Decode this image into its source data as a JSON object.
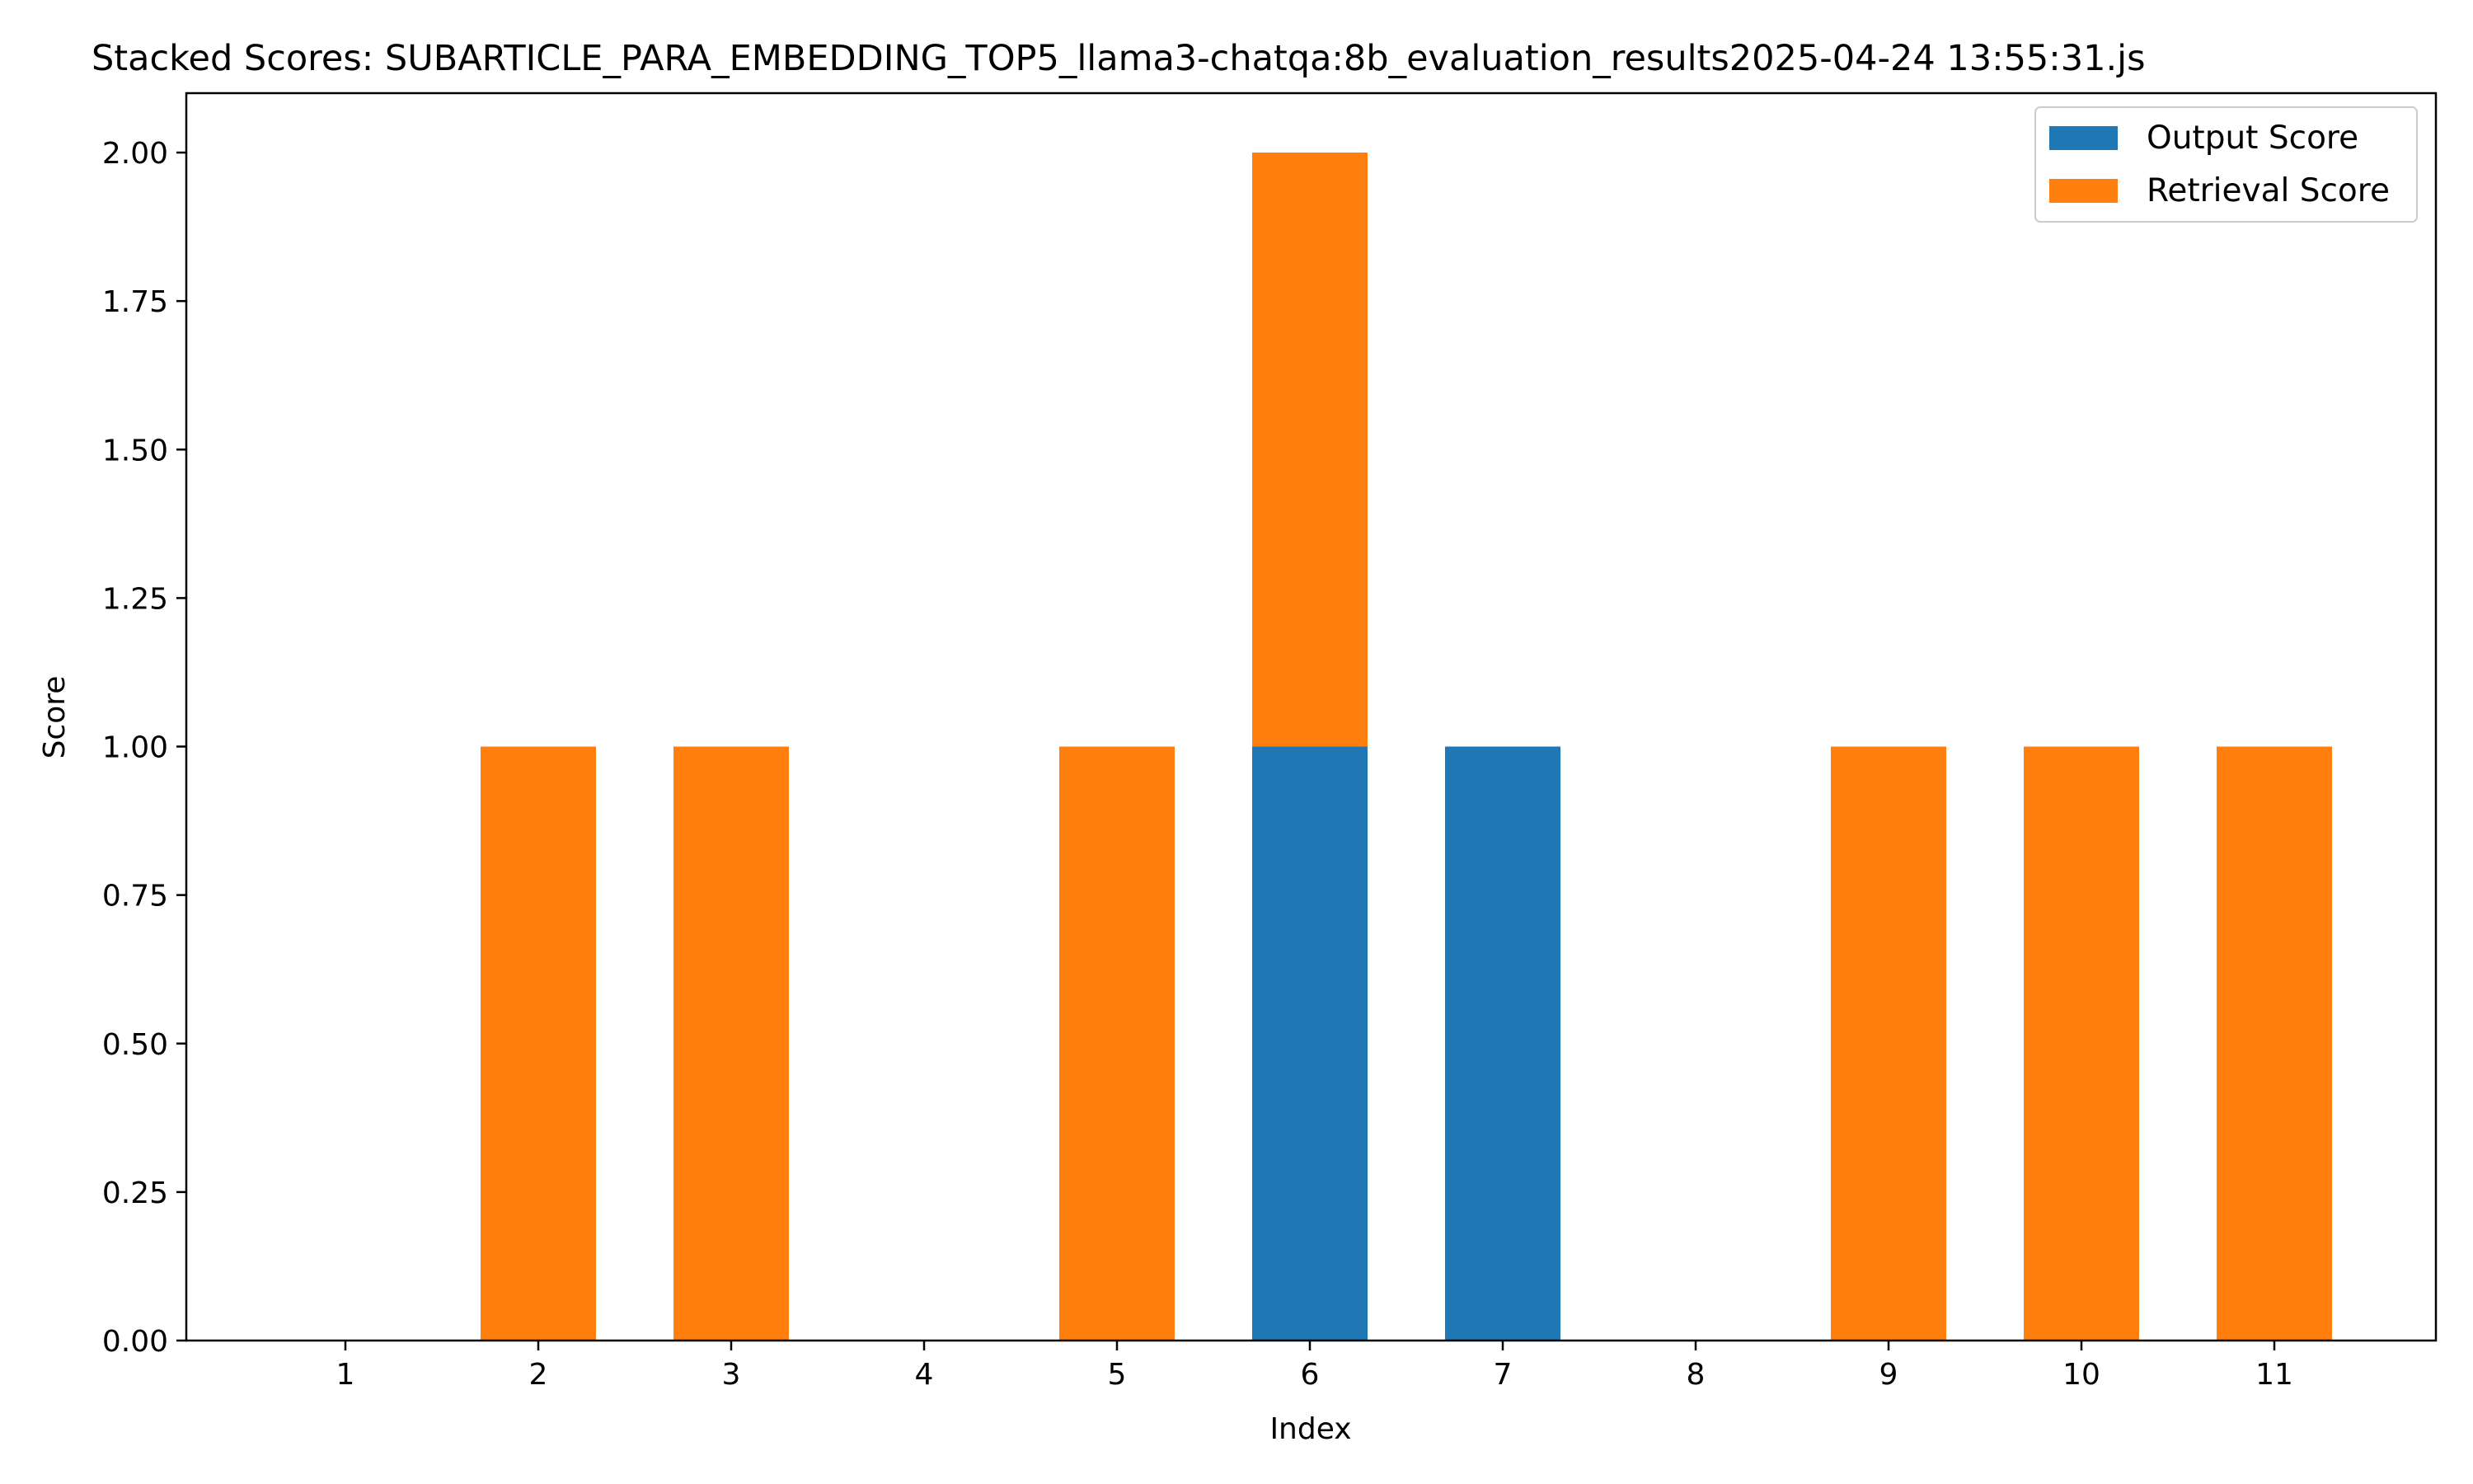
{
  "chart_data": {
    "type": "bar",
    "stacked": true,
    "title": "Stacked Scores: SUBARTICLE_PARA_EMBEDDING_TOP5_llama3-chatqa:8b_evaluation_results2025-04-24 13:55:31.js",
    "xlabel": "Index",
    "ylabel": "Score",
    "categories": [
      "1",
      "2",
      "3",
      "4",
      "5",
      "6",
      "7",
      "8",
      "9",
      "10",
      "11"
    ],
    "series": [
      {
        "name": "Output Score",
        "color": "#1f77b4",
        "values": [
          0,
          0,
          0,
          0,
          0,
          1,
          1,
          0,
          0,
          0,
          0
        ]
      },
      {
        "name": "Retrieval Score",
        "color": "#ff7f0e",
        "values": [
          0,
          1,
          1,
          0,
          1,
          1,
          0,
          0,
          1,
          1,
          1
        ]
      }
    ],
    "ylim": [
      0,
      2.1
    ],
    "yticks": [
      "0.00",
      "0.25",
      "0.50",
      "0.75",
      "1.00",
      "1.25",
      "1.50",
      "1.75",
      "2.00"
    ],
    "grid": false,
    "legend_position": "top-right"
  }
}
